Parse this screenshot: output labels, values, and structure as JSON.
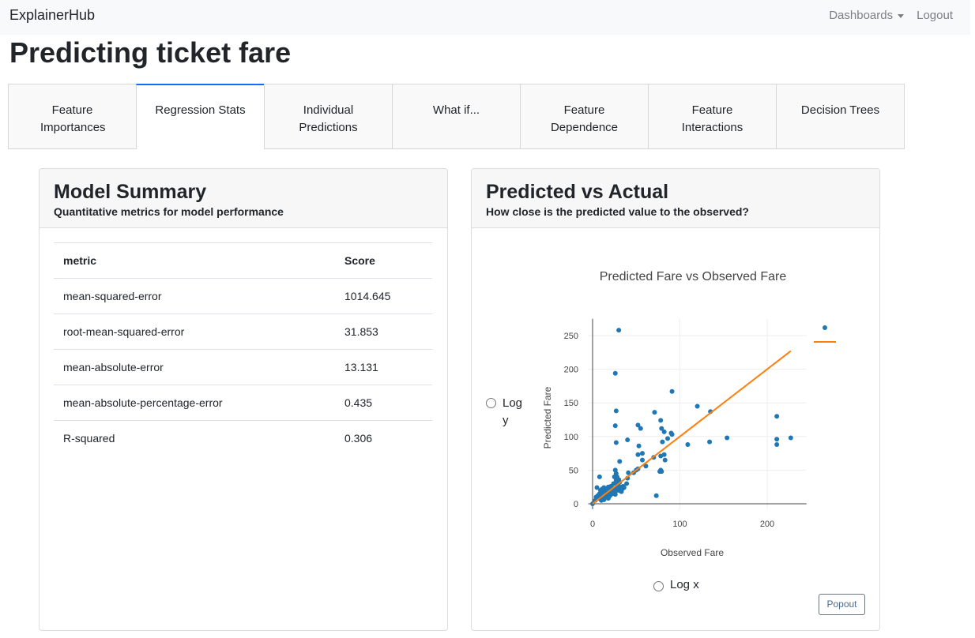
{
  "navbar": {
    "brand": "ExplainerHub",
    "dashboards": "Dashboards",
    "logout": "Logout"
  },
  "page_title": "Predicting ticket fare",
  "tabs": [
    {
      "label": "Feature Importances"
    },
    {
      "label": "Regression Stats",
      "active": true
    },
    {
      "label": "Individual Predictions"
    },
    {
      "label": "What if..."
    },
    {
      "label": "Feature Dependence"
    },
    {
      "label": "Feature Interactions"
    },
    {
      "label": "Decision Trees"
    }
  ],
  "summary": {
    "title": "Model Summary",
    "subtitle": "Quantitative metrics for model performance",
    "headers": [
      "metric",
      "Score"
    ],
    "rows": [
      [
        "mean-squared-error",
        "1014.645"
      ],
      [
        "root-mean-squared-error",
        "31.853"
      ],
      [
        "mean-absolute-error",
        "13.131"
      ],
      [
        "mean-absolute-percentage-error",
        "0.435"
      ],
      [
        "R-squared",
        "0.306"
      ]
    ]
  },
  "pva": {
    "title": "Predicted vs Actual",
    "subtitle": "How close is the predicted value to the observed?",
    "log_y": "Log y",
    "log_x": "Log x",
    "popout": "Popout"
  },
  "chart_data": {
    "type": "scatter",
    "title": "Predicted Fare vs Observed Fare",
    "xlabel": "Observed Fare",
    "ylabel": "Predicted Fare",
    "xlim": [
      -5,
      245
    ],
    "ylim": [
      -8,
      275
    ],
    "xticks": [
      0,
      100,
      200
    ],
    "yticks": [
      0,
      50,
      100,
      150,
      200,
      250
    ],
    "grid": true,
    "legend": "top-right",
    "colors": {
      "points": "#1f77b4",
      "line": "#ff7f0e"
    },
    "points": [
      [
        0,
        0
      ],
      [
        30,
        258
      ],
      [
        26,
        194
      ],
      [
        91,
        167
      ],
      [
        27,
        138
      ],
      [
        26,
        116
      ],
      [
        27,
        91
      ],
      [
        40,
        95
      ],
      [
        52,
        117
      ],
      [
        55,
        112
      ],
      [
        53,
        86
      ],
      [
        52,
        73
      ],
      [
        57,
        75
      ],
      [
        57,
        65
      ],
      [
        61,
        56
      ],
      [
        70,
        69
      ],
      [
        71,
        136
      ],
      [
        78,
        124
      ],
      [
        79,
        112
      ],
      [
        82,
        107
      ],
      [
        90,
        105
      ],
      [
        91,
        103
      ],
      [
        86,
        97
      ],
      [
        80,
        92
      ],
      [
        78,
        71
      ],
      [
        82,
        73
      ],
      [
        83,
        65
      ],
      [
        78,
        50
      ],
      [
        77,
        48
      ],
      [
        79,
        48
      ],
      [
        73,
        12
      ],
      [
        120,
        145
      ],
      [
        135,
        137
      ],
      [
        109,
        88
      ],
      [
        134,
        92
      ],
      [
        154,
        98
      ],
      [
        211,
        130
      ],
      [
        211,
        96
      ],
      [
        211,
        88
      ],
      [
        227,
        98
      ],
      [
        31,
        63
      ],
      [
        26,
        50
      ],
      [
        27,
        45
      ],
      [
        25,
        40
      ],
      [
        8,
        40
      ],
      [
        41,
        46
      ],
      [
        47,
        46
      ],
      [
        52,
        52
      ],
      [
        50,
        50
      ],
      [
        40,
        38
      ],
      [
        39,
        30
      ],
      [
        5,
        24
      ],
      [
        7,
        8
      ],
      [
        8,
        15
      ],
      [
        9,
        20
      ],
      [
        10,
        5
      ],
      [
        11,
        12
      ],
      [
        12,
        18
      ],
      [
        13,
        24
      ],
      [
        14,
        10
      ],
      [
        15,
        16
      ],
      [
        16,
        22
      ],
      [
        17,
        14
      ],
      [
        18,
        8
      ],
      [
        19,
        20
      ],
      [
        20,
        18
      ],
      [
        21,
        26
      ],
      [
        22,
        24
      ],
      [
        23,
        15
      ],
      [
        24,
        30
      ],
      [
        25,
        22
      ],
      [
        26,
        18
      ],
      [
        27,
        35
      ],
      [
        28,
        28
      ],
      [
        29,
        25
      ],
      [
        30,
        20
      ],
      [
        31,
        32
      ],
      [
        32,
        25
      ],
      [
        33,
        18
      ],
      [
        34,
        22
      ],
      [
        35,
        26
      ],
      [
        6,
        12
      ],
      [
        9,
        10
      ],
      [
        11,
        22
      ],
      [
        13,
        6
      ],
      [
        26,
        14
      ],
      [
        28,
        40
      ],
      [
        30,
        36
      ],
      [
        29,
        30
      ],
      [
        24,
        20
      ],
      [
        3,
        5
      ],
      [
        4,
        10
      ],
      [
        36,
        24
      ],
      [
        20,
        12
      ],
      [
        18,
        25
      ]
    ],
    "line": [
      [
        0,
        0
      ],
      [
        227,
        227
      ]
    ]
  }
}
